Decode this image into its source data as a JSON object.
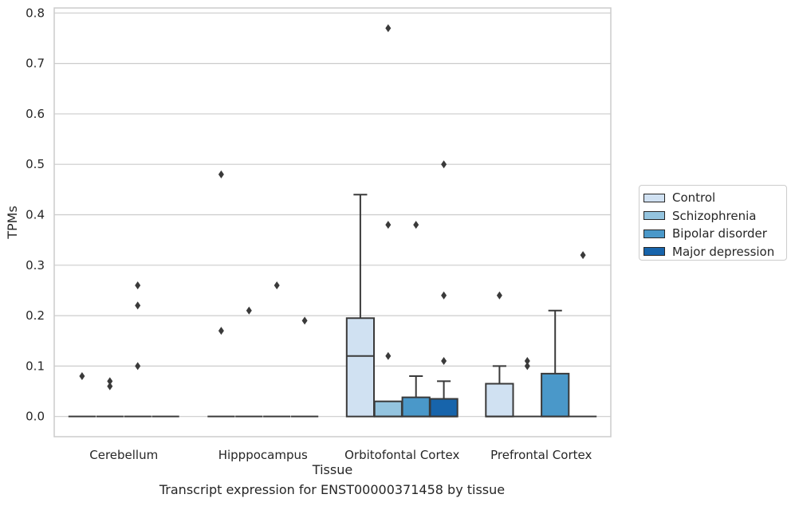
{
  "chart_data": {
    "type": "box",
    "xlabel": "Tissue",
    "ylabel": "TPMs",
    "ylim": [
      -0.04,
      0.81
    ],
    "yticks": [
      0.0,
      0.1,
      0.2,
      0.3,
      0.4,
      0.5,
      0.6,
      0.7,
      0.8
    ],
    "ytick_labels": [
      "0.0",
      "0.1",
      "0.2",
      "0.3",
      "0.4",
      "0.5",
      "0.6",
      "0.7",
      "0.8"
    ],
    "categories": [
      "Cerebellum",
      "Hipppocampus",
      "Orbitofontal Cortex",
      "Prefrontal Cortex"
    ],
    "grid": "horizontal",
    "legend_position": "outside-right",
    "series": [
      {
        "name": "Control",
        "color": "#d0e1f2",
        "boxes": [
          {
            "q1": 0.0,
            "median": 0.0,
            "q3": 0.0,
            "whisker_low": 0.0,
            "whisker_high": 0.0,
            "outliers": [
              0.08
            ]
          },
          {
            "q1": 0.0,
            "median": 0.0,
            "q3": 0.0,
            "whisker_low": 0.0,
            "whisker_high": 0.0,
            "outliers": [
              0.17,
              0.48
            ]
          },
          {
            "q1": 0.0,
            "median": 0.12,
            "q3": 0.195,
            "whisker_low": 0.0,
            "whisker_high": 0.44,
            "outliers": []
          },
          {
            "q1": 0.0,
            "median": 0.0,
            "q3": 0.065,
            "whisker_low": 0.0,
            "whisker_high": 0.1,
            "outliers": [
              0.24
            ]
          }
        ]
      },
      {
        "name": "Schizophrenia",
        "color": "#94c4df",
        "boxes": [
          {
            "q1": 0.0,
            "median": 0.0,
            "q3": 0.0,
            "whisker_low": 0.0,
            "whisker_high": 0.0,
            "outliers": [
              0.06,
              0.07
            ]
          },
          {
            "q1": 0.0,
            "median": 0.0,
            "q3": 0.0,
            "whisker_low": 0.0,
            "whisker_high": 0.0,
            "outliers": [
              0.21
            ]
          },
          {
            "q1": 0.0,
            "median": 0.0,
            "q3": 0.03,
            "whisker_low": 0.0,
            "whisker_high": 0.03,
            "outliers": [
              0.12,
              0.38,
              0.77
            ]
          },
          {
            "q1": 0.0,
            "median": 0.0,
            "q3": 0.0,
            "whisker_low": 0.0,
            "whisker_high": 0.0,
            "outliers": [
              0.1,
              0.11
            ]
          }
        ]
      },
      {
        "name": "Bipolar disorder",
        "color": "#4a98c9",
        "boxes": [
          {
            "q1": 0.0,
            "median": 0.0,
            "q3": 0.0,
            "whisker_low": 0.0,
            "whisker_high": 0.0,
            "outliers": [
              0.1,
              0.22,
              0.26
            ]
          },
          {
            "q1": 0.0,
            "median": 0.0,
            "q3": 0.0,
            "whisker_low": 0.0,
            "whisker_high": 0.0,
            "outliers": [
              0.26
            ]
          },
          {
            "q1": 0.0,
            "median": 0.0,
            "q3": 0.038,
            "whisker_low": 0.0,
            "whisker_high": 0.08,
            "outliers": [
              0.38
            ]
          },
          {
            "q1": 0.0,
            "median": 0.0,
            "q3": 0.085,
            "whisker_low": 0.0,
            "whisker_high": 0.21,
            "outliers": []
          }
        ]
      },
      {
        "name": "Major depression",
        "color": "#1764ab",
        "boxes": [
          {
            "q1": 0.0,
            "median": 0.0,
            "q3": 0.0,
            "whisker_low": 0.0,
            "whisker_high": 0.0,
            "outliers": []
          },
          {
            "q1": 0.0,
            "median": 0.0,
            "q3": 0.0,
            "whisker_low": 0.0,
            "whisker_high": 0.0,
            "outliers": [
              0.19
            ]
          },
          {
            "q1": 0.0,
            "median": 0.0,
            "q3": 0.035,
            "whisker_low": 0.0,
            "whisker_high": 0.07,
            "outliers": [
              0.11,
              0.24,
              0.5
            ]
          },
          {
            "q1": 0.0,
            "median": 0.0,
            "q3": 0.0,
            "whisker_low": 0.0,
            "whisker_high": 0.0,
            "outliers": [
              0.32
            ]
          }
        ]
      }
    ]
  },
  "caption": "Transcript expression for ENST00000371458 by tissue"
}
